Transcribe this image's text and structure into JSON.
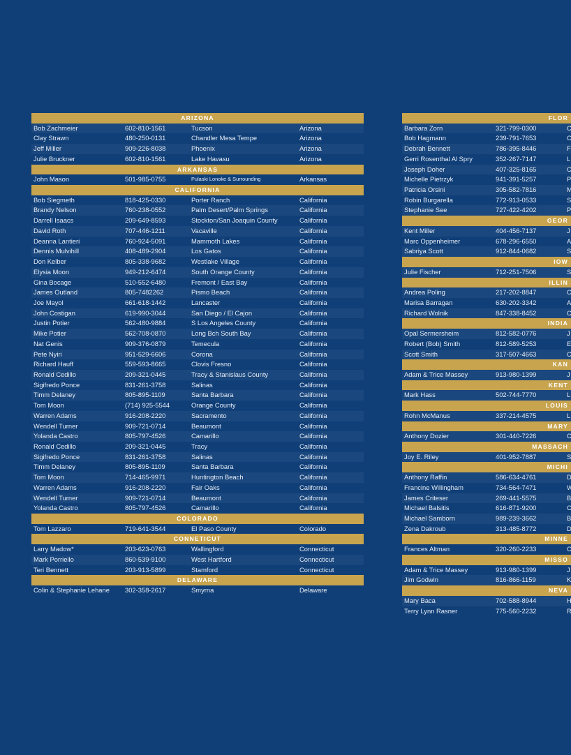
{
  "left": [
    {
      "header": "ARIZONA"
    },
    {
      "name": "Bob Zachmeier",
      "phone": "602-810-1561",
      "city": "Tucson",
      "state": "Arizona"
    },
    {
      "name": "Clay Strawn",
      "phone": "480-250-0131",
      "city": "Chandler Mesa Tempe",
      "state": "Arizona"
    },
    {
      "name": "Jeff Miller",
      "phone": "909-226-8038",
      "city": "Phoenix",
      "state": "Arizona"
    },
    {
      "name": "Julie Bruckner",
      "phone": "602-810-1561",
      "city": "Lake Havasu",
      "state": "Arizona"
    },
    {
      "header": "ARKANSAS"
    },
    {
      "name": "John Mason",
      "phone": "501-985-0755",
      "city": "Pulaski Lonoke & Surrounding",
      "state": "Arkansas",
      "small": true
    },
    {
      "header": "CALIFORNIA"
    },
    {
      "name": "Bob Siegmeth",
      "phone": "818-425-0330",
      "city": "Porter Ranch",
      "state": "California"
    },
    {
      "name": "Brandy Nelson",
      "phone": "760-238-0552",
      "city": "Palm Desert/Palm Springs",
      "state": "California"
    },
    {
      "name": "Darrell Isaacs",
      "phone": "209-649-8593",
      "city": "Stockton/San Joaquin County",
      "state": "California"
    },
    {
      "name": "David Roth",
      "phone": "707-446-1211",
      "city": "Vacaville",
      "state": "California"
    },
    {
      "name": "Deanna Lantieri",
      "phone": "760-924-5091",
      "city": "Mammoth Lakes",
      "state": "California"
    },
    {
      "name": "Dennis Mulvihill",
      "phone": "408-489-2904",
      "city": "Los Gatos",
      "state": "California"
    },
    {
      "name": "Don Kelber",
      "phone": "805-338-9682",
      "city": "Westlake Village",
      "state": "California"
    },
    {
      "name": "Elysia Moon",
      "phone": "949-212-6474",
      "city": "South Orange County",
      "state": "California"
    },
    {
      "name": "Gina Bocage",
      "phone": "510-552-6480",
      "city": "Fremont / East Bay",
      "state": "California"
    },
    {
      "name": "James Outland",
      "phone": "805-7482262",
      "city": "Pismo Beach",
      "state": "California"
    },
    {
      "name": "Joe Mayol",
      "phone": "661-618-1442",
      "city": "Lancaster",
      "state": "California"
    },
    {
      "name": "John Costigan",
      "phone": "619-990-3044",
      "city": "San Diego / El Cajon",
      "state": "California"
    },
    {
      "name": "Justin Potier",
      "phone": "562-480-9884",
      "city": "S Los Angeles County",
      "state": "California"
    },
    {
      "name": "Mike Potier",
      "phone": "562-708-0870",
      "city": "Long Bch South Bay",
      "state": "California"
    },
    {
      "name": "Nat Genis",
      "phone": "909-376-0879",
      "city": "Temecula",
      "state": "California"
    },
    {
      "name": "Pete Nyiri",
      "phone": "951-529-6606",
      "city": "Corona",
      "state": "California"
    },
    {
      "name": "Richard Hauff",
      "phone": "559-593-8665",
      "city": "Clovis Fresno",
      "state": "California"
    },
    {
      "name": "Ronald Cedillo",
      "phone": "209-321-0445",
      "city": "Tracy & Stanislaus County",
      "state": "California"
    },
    {
      "name": "Sigifredo Ponce",
      "phone": "831-261-3758",
      "city": "Salinas",
      "state": "California"
    },
    {
      "name": "Timm Delaney",
      "phone": "805-895-1109",
      "city": "Santa Barbara",
      "state": "California"
    },
    {
      "name": "Tom Moon",
      "phone": "(714) 925-5544",
      "city": "Orange County",
      "state": "California"
    },
    {
      "name": "Warren Adams",
      "phone": "916-208-2220",
      "city": "Sacramento",
      "state": "California"
    },
    {
      "name": "Wendell Turner",
      "phone": "909-721-0714",
      "city": "Beaumont",
      "state": "California"
    },
    {
      "name": "Yolanda Castro",
      "phone": "805-797-4526",
      "city": "Camarillo",
      "state": "California"
    },
    {
      "name": "Ronald Cedillo",
      "phone": "209-321-0445",
      "city": "Tracy",
      "state": "California"
    },
    {
      "name": "Sigifredo Ponce",
      "phone": "831-261-3758",
      "city": "Salinas",
      "state": "California"
    },
    {
      "name": "Timm Delaney",
      "phone": "805-895-1109",
      "city": "Santa Barbara",
      "state": "California"
    },
    {
      "name": "Tom Moon",
      "phone": "714-465-9971",
      "city": "Huntington Beach",
      "state": "California"
    },
    {
      "name": "Warren Adams",
      "phone": "916-208-2220",
      "city": "Fair Oaks",
      "state": "California"
    },
    {
      "name": "Wendell Turner",
      "phone": "909-721-0714",
      "city": "Beaumont",
      "state": "California"
    },
    {
      "name": "Yolanda Castro",
      "phone": "805-797-4526",
      "city": "Camarillo",
      "state": "California"
    },
    {
      "header": "COLORADO"
    },
    {
      "name": "Tom Lazzaro",
      "phone": "719-641-3544",
      "city": "El Paso County",
      "state": "Colorado"
    },
    {
      "header": "CONNETICUT"
    },
    {
      "name": "Larry Madow*",
      "phone": "203-623-0763",
      "city": "Wallingford",
      "state": "Connecticut"
    },
    {
      "name": "Mark Porriello",
      "phone": "860-539-9100",
      "city": "West Hartford",
      "state": "Connecticut"
    },
    {
      "name": "Teri Bennett",
      "phone": "203-913-5899",
      "city": "Stamford",
      "state": "Connecticut"
    },
    {
      "header": "DELAWARE"
    },
    {
      "name": "Colin & Stephanie Lehane",
      "phone": "302-358-2617",
      "city": "Smyrna",
      "state": "Delaware"
    }
  ],
  "right": [
    {
      "header": "FLOR"
    },
    {
      "name": "Barbara Zorn",
      "phone": "321-799-0300",
      "city": "C"
    },
    {
      "name": "Bob Hagmann",
      "phone": "239-791-7653",
      "city": "C"
    },
    {
      "name": "Debrah Bennett",
      "phone": "786-395-8446",
      "city": "F"
    },
    {
      "name": "Gerri Rosenthal Al Spry",
      "phone": "352-267-7147",
      "city": "L"
    },
    {
      "name": "Joseph Doher",
      "phone": "407-325-8165",
      "city": "C"
    },
    {
      "name": "Michelle Pietrzyk",
      "phone": "941-391-5257",
      "city": "P"
    },
    {
      "name": "Patricia Orsini",
      "phone": "305-582-7816",
      "city": "M"
    },
    {
      "name": "Robin Burgarella",
      "phone": "772-913-0533",
      "city": "S"
    },
    {
      "name": "Stephanie See",
      "phone": "727-422-4202",
      "city": "P"
    },
    {
      "header": "GEOR"
    },
    {
      "name": "Kent Miller",
      "phone": "404-456-7137",
      "city": "J"
    },
    {
      "name": "Marc Oppenheimer",
      "phone": "678-296-6550",
      "city": "A"
    },
    {
      "name": "Sabriya Scott",
      "phone": "912-844-0682",
      "city": "S"
    },
    {
      "header": "IOW"
    },
    {
      "name": "Julie Fischer",
      "phone": "712-251-7506",
      "city": "S"
    },
    {
      "header": "ILLIN"
    },
    {
      "name": "Andrea Poling",
      "phone": "217-202-8847",
      "city": "C"
    },
    {
      "name": "Marisa Barragan",
      "phone": "630-202-3342",
      "city": "A"
    },
    {
      "name": "Richard Wolnik",
      "phone": "847-338-8452",
      "city": "C"
    },
    {
      "header": "INDIA"
    },
    {
      "name": "Opal Sermersheim",
      "phone": "812-582-0776",
      "city": "J"
    },
    {
      "name": "Robert (Bob) Smith",
      "phone": "812-589-5253",
      "city": "E"
    },
    {
      "name": "Scott Smith",
      "phone": "317-507-4663",
      "city": "C"
    },
    {
      "header": "KAN"
    },
    {
      "name": "Adam & Trice Massey",
      "phone": "913-980-1399",
      "city": "J"
    },
    {
      "header": "KENT"
    },
    {
      "name": "Mark Hass",
      "phone": "502-744-7770",
      "city": "L"
    },
    {
      "header": "LOUIS"
    },
    {
      "name": "Rohn McManus",
      "phone": "337-214-4575",
      "city": "L"
    },
    {
      "header": "MARY"
    },
    {
      "name": "Anthony Dozier",
      "phone": "301-440-7226",
      "city": "C"
    },
    {
      "header": "MASSACH"
    },
    {
      "name": "Joy E. Riley",
      "phone": "401-952-7887",
      "city": "S"
    },
    {
      "header": "MICHI"
    },
    {
      "name": "Anthony Raffin",
      "phone": "586-634-4761",
      "city": "D"
    },
    {
      "name": "Francine Willingham",
      "phone": "734-564-7471",
      "city": "W"
    },
    {
      "name": "James Criteser",
      "phone": "269-441-5575",
      "city": "B"
    },
    {
      "name": "Michael Balsitis",
      "phone": "616-871-9200",
      "city": "C"
    },
    {
      "name": "Michael Samborn",
      "phone": "989-239-3662",
      "city": "B"
    },
    {
      "name": "Zena Dakroub",
      "phone": "313-485-8772",
      "city": "D"
    },
    {
      "header": "MINNE"
    },
    {
      "name": "Frances Altman",
      "phone": "320-260-2233",
      "city": "C"
    },
    {
      "header": "MISSO"
    },
    {
      "name": "Adam & Trice Massey",
      "phone": "913-980-1399",
      "city": "J"
    },
    {
      "name": "Jim Godwin",
      "phone": "816-866-1159",
      "city": "K"
    },
    {
      "header": "NEVA"
    },
    {
      "name": "Mary Baca",
      "phone": "702-588-8944",
      "city": "H"
    },
    {
      "name": "Terry Lynn Rasner",
      "phone": "775-560-2232",
      "city": "R"
    }
  ]
}
